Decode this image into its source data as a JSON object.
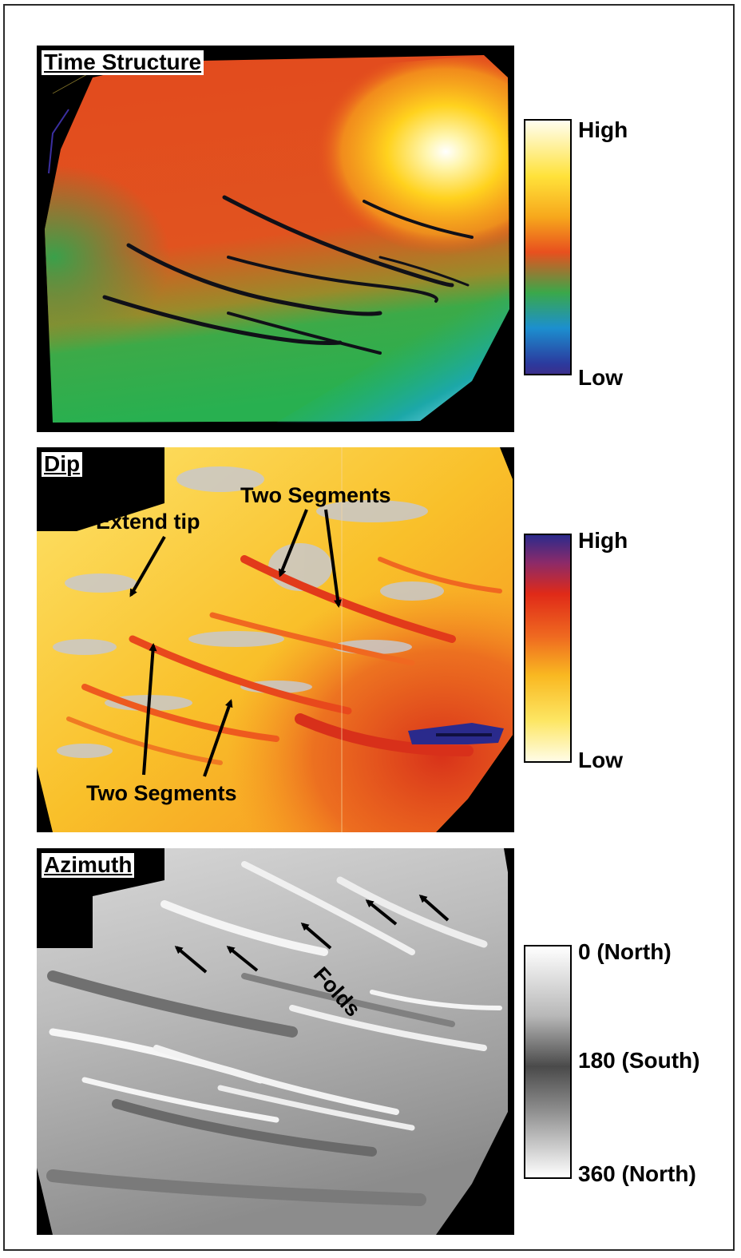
{
  "panels": {
    "time_structure": {
      "title": "Time Structure",
      "colorbar": {
        "high_label": "High",
        "low_label": "Low",
        "colors": [
          "#fffef0",
          "#ffe23a",
          "#f7a81c",
          "#e8501e",
          "#2aa84a",
          "#1c8fcf",
          "#2b3a9e",
          "#3b2f8c"
        ]
      }
    },
    "dip": {
      "title": "Dip",
      "colorbar": {
        "high_label": "High",
        "low_label": "Low",
        "colors": [
          "#2c2a8c",
          "#8a2a6a",
          "#e02a18",
          "#ef6a20",
          "#f9b821",
          "#fde663",
          "#fffce6"
        ]
      },
      "annotations": {
        "extend_tip": "Extend tip",
        "two_segments_top": "Two Segments",
        "two_segments_bottom": "Two Segments"
      }
    },
    "azimuth": {
      "title": "Azimuth",
      "colorbar": {
        "top_label": "0 (North)",
        "middle_label": "180 (South)",
        "bottom_label": "360 (North)",
        "colors": [
          "#ffffff",
          "#b8b8b8",
          "#4a4a4a",
          "#8a8a8a",
          "#ffffff"
        ]
      },
      "annotations": {
        "folds": "Folds"
      }
    }
  }
}
